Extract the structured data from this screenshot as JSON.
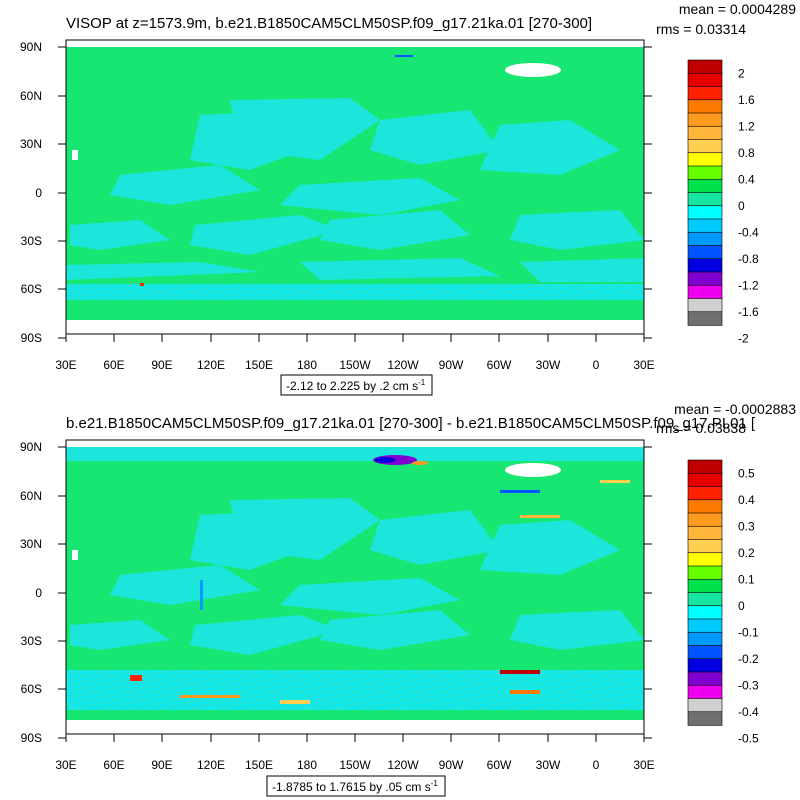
{
  "colors": {
    "land": "#18e673",
    "ocean_light": "#1ce5dc",
    "ocean_mid": "#0ce9f0",
    "ice": "#ffffff",
    "frame": "#000000"
  },
  "colorbar_colors": [
    "#c00000",
    "#e80000",
    "#ff2200",
    "#ff7a00",
    "#ff9a20",
    "#ffb43c",
    "#ffd050",
    "#ffff00",
    "#66ff00",
    "#00e24a",
    "#18e6a0",
    "#00ffff",
    "#00ccff",
    "#0099ff",
    "#0055ff",
    "#0000e0",
    "#8000d0",
    "#ee00ee",
    "#d0d0d0",
    "#707070"
  ],
  "lon_ticks": [
    "30E",
    "60E",
    "90E",
    "120E",
    "150E",
    "180",
    "150W",
    "120W",
    "90W",
    "60W",
    "30W",
    "0",
    "30E"
  ],
  "lat_ticks": [
    "90N",
    "60N",
    "30N",
    "0",
    "30S",
    "60S",
    "90S"
  ],
  "panels": [
    {
      "title": "VISOP at z=1573.9m, b.e21.B1850CAM5CLM50SP.f09_g17.21ka.01 [270-300]",
      "mean": "mean = 0.0004289",
      "rms": "rms = 0.03314",
      "info_prefix": "-2.12 to 2.225 by .2 cm s",
      "info_exp": "-1",
      "colorbar_labels": [
        "2",
        "1.6",
        "1.2",
        "0.8",
        "0.4",
        "0",
        "-0.4",
        "-0.8",
        "-1.2",
        "-1.6",
        "-2"
      ]
    },
    {
      "title": "b.e21.B1850CAM5CLM50SP.f09_g17.21ka.01 [270-300] - b.e21.B1850CAM5CLM50SP.f09_g17.PI.01 [",
      "mean": "mean = -0.0002883",
      "rms": "rms = 0.03838",
      "info_prefix": "-1.8785 to 1.7615 by .05 cm s",
      "info_exp": "-1",
      "colorbar_labels": [
        "0.5",
        "0.4",
        "0.3",
        "0.2",
        "0.1",
        "0",
        "-0.1",
        "-0.2",
        "-0.3",
        "-0.4",
        "-0.5"
      ]
    }
  ]
}
